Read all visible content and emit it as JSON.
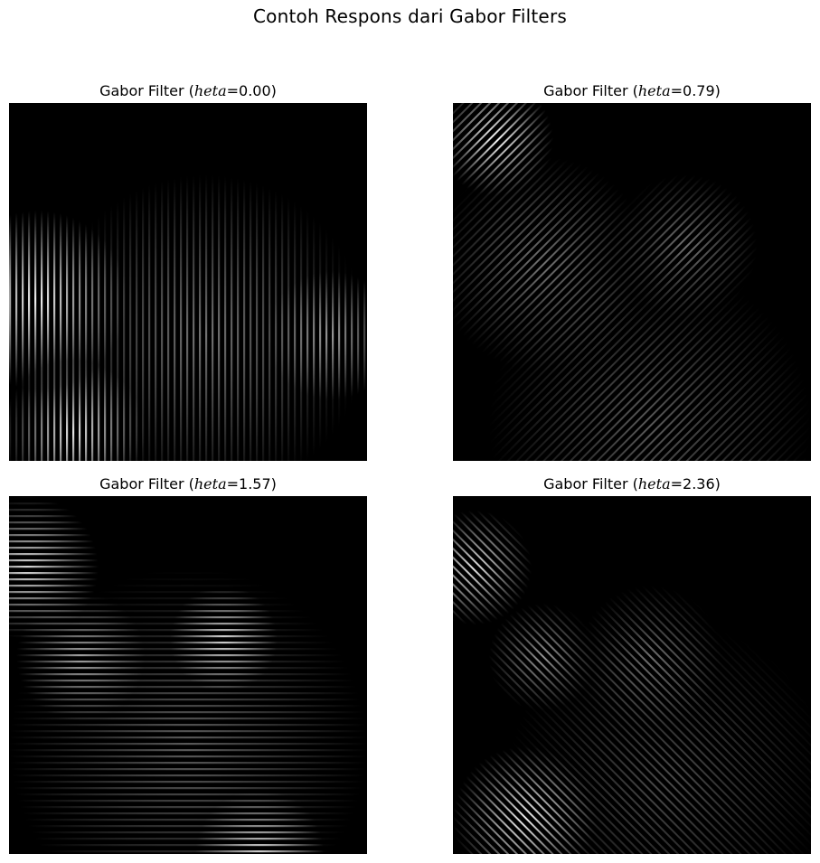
{
  "figure": {
    "suptitle": "Contoh Respons dari Gabor Filters",
    "panels": [
      {
        "prefix": "Gabor Filter (",
        "symbol": "heta",
        "suffix": "=0.00)",
        "orientation": "vertical"
      },
      {
        "prefix": "Gabor Filter (",
        "symbol": "heta",
        "suffix": "=0.79)",
        "orientation": "diagonal-up"
      },
      {
        "prefix": "Gabor Filter (",
        "symbol": "heta",
        "suffix": "=1.57)",
        "orientation": "horizontal"
      },
      {
        "prefix": "Gabor Filter (",
        "symbol": "heta",
        "suffix": "=2.36)",
        "orientation": "diagonal-down"
      }
    ],
    "colormap": "gray",
    "background": "#000000"
  }
}
